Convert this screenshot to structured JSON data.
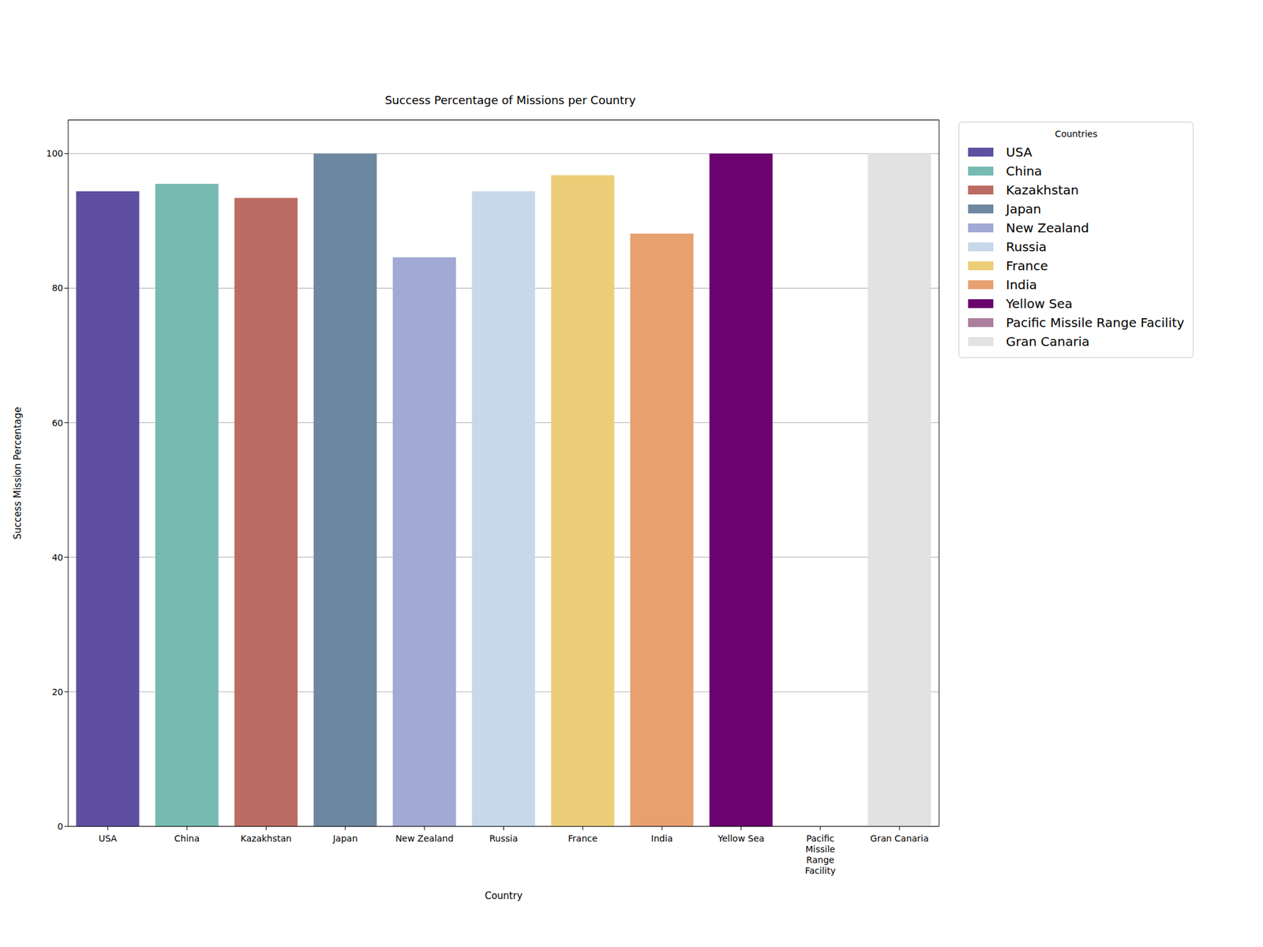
{
  "chart_data": {
    "type": "bar",
    "title": "Success Percentage of Missions per Country",
    "x_label": "Country",
    "y_label": "Success Mission Percentage",
    "categories": [
      "USA",
      "China",
      "Kazakhstan",
      "Japan",
      "New Zealand",
      "Russia",
      "France",
      "India",
      "Yellow Sea",
      "Pacific Missile Range Facility",
      "Gran Canaria"
    ],
    "values": [
      94.4,
      95.5,
      93.4,
      100,
      84.6,
      94.4,
      96.8,
      88.1,
      100,
      0,
      100
    ],
    "colors": [
      "#5e4fa2",
      "#76bab1",
      "#bc6b62",
      "#6e87a0",
      "#a1a9d4",
      "#c6d8e9",
      "#ecce78",
      "#e8a070",
      "#6a036d",
      "#ab809d",
      "#e2e2e2"
    ],
    "ylim": [
      0,
      105
    ],
    "yticks": [
      0,
      20,
      40,
      60,
      80,
      100
    ],
    "grid": true,
    "legend": "upper right",
    "legend_title": "Countries"
  }
}
